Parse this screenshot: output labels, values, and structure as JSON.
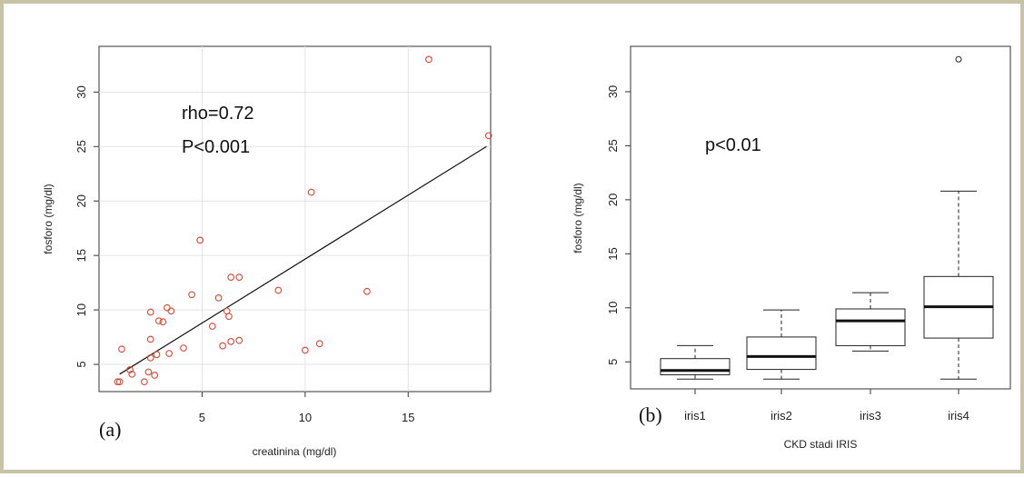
{
  "chart_data": [
    {
      "panel": "(a)",
      "type": "scatter",
      "xlabel": "creatinina (mg/dl)",
      "ylabel": "fosforo (mg/dl)",
      "xlim": [
        0,
        19
      ],
      "ylim": [
        2.5,
        34.2
      ],
      "xticks": [
        5,
        10,
        15
      ],
      "yticks": [
        5,
        10,
        15,
        20,
        25,
        30
      ],
      "annotations": [
        "rho=0.72",
        "P<0.001"
      ],
      "point_color": "#d9462e",
      "points": [
        [
          0.9,
          3.4
        ],
        [
          1.0,
          3.4
        ],
        [
          1.1,
          6.4
        ],
        [
          1.5,
          4.5
        ],
        [
          1.6,
          4.1
        ],
        [
          2.2,
          3.4
        ],
        [
          2.4,
          4.3
        ],
        [
          2.5,
          9.8
        ],
        [
          2.5,
          7.3
        ],
        [
          2.5,
          5.6
        ],
        [
          2.7,
          4.0
        ],
        [
          2.8,
          5.9
        ],
        [
          2.9,
          9.0
        ],
        [
          3.1,
          8.9
        ],
        [
          3.3,
          10.2
        ],
        [
          3.4,
          6.0
        ],
        [
          3.5,
          9.9
        ],
        [
          4.1,
          6.5
        ],
        [
          4.5,
          11.4
        ],
        [
          4.9,
          16.4
        ],
        [
          5.5,
          8.5
        ],
        [
          5.8,
          11.1
        ],
        [
          6.0,
          6.7
        ],
        [
          6.2,
          9.9
        ],
        [
          6.3,
          9.4
        ],
        [
          6.4,
          7.1
        ],
        [
          6.4,
          13.0
        ],
        [
          6.8,
          13.0
        ],
        [
          6.8,
          7.2
        ],
        [
          8.7,
          11.8
        ],
        [
          10.0,
          6.3
        ],
        [
          10.3,
          20.8
        ],
        [
          10.7,
          6.9
        ],
        [
          13.0,
          11.7
        ],
        [
          16.0,
          33.0
        ],
        [
          18.9,
          26.0
        ]
      ],
      "fit_line": {
        "x": [
          1.0,
          18.8
        ],
        "y": [
          4.1,
          25.0
        ]
      }
    },
    {
      "panel": "(b)",
      "type": "box",
      "xlabel": "CKD stadi IRIS",
      "ylabel": "fosforo (mg/dl)",
      "ylim": [
        2.5,
        34.2
      ],
      "yticks": [
        5,
        10,
        15,
        20,
        25,
        30
      ],
      "annotations": [
        "p<0.01"
      ],
      "categories": [
        "iris1",
        "iris2",
        "iris3",
        "iris4"
      ],
      "boxes": [
        {
          "name": "iris1",
          "min": 3.4,
          "q1": 3.8,
          "median": 4.2,
          "q3": 5.3,
          "max": 6.5,
          "outliers": []
        },
        {
          "name": "iris2",
          "min": 3.4,
          "q1": 4.3,
          "median": 5.5,
          "q3": 7.3,
          "max": 9.8,
          "outliers": []
        },
        {
          "name": "iris3",
          "min": 6.0,
          "q1": 6.5,
          "median": 8.8,
          "q3": 9.9,
          "max": 11.4,
          "outliers": []
        },
        {
          "name": "iris4",
          "min": 3.4,
          "q1": 7.2,
          "median": 10.1,
          "q3": 12.9,
          "max": 20.8,
          "outliers": [
            33.0
          ]
        }
      ]
    }
  ]
}
